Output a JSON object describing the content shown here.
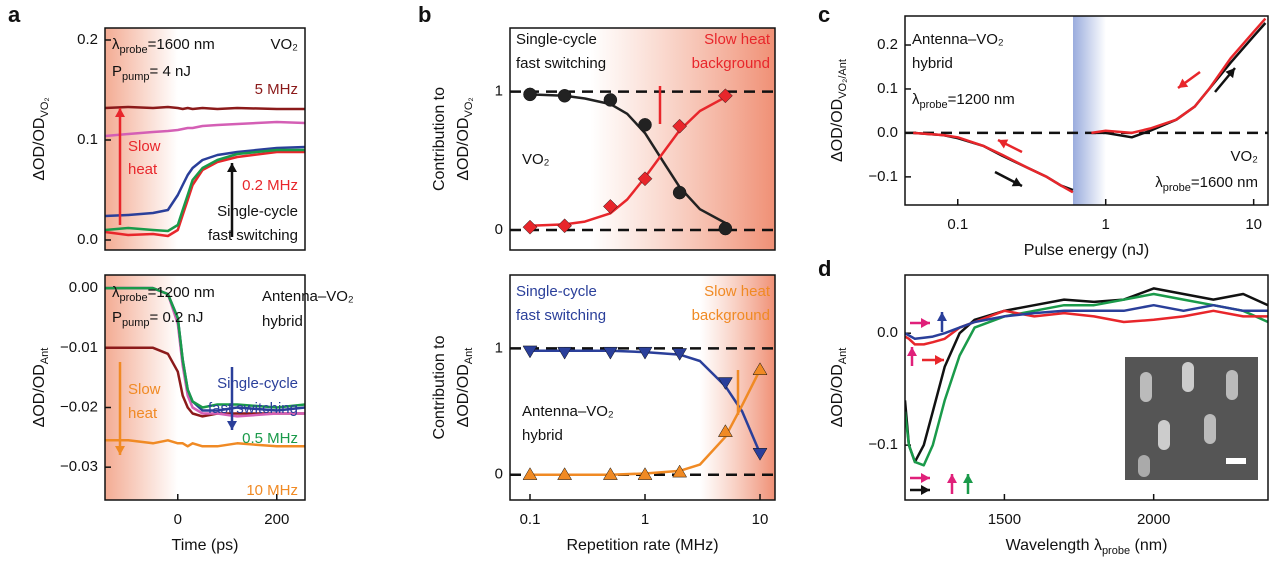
{
  "chart_data": [
    {
      "panel": "a",
      "type": "line",
      "ylabel": [
        [
          "ΔOD/OD",
          "VO₂"
        ]
      ],
      "xlim": [
        -147,
        257
      ],
      "ylim": [
        -0.01,
        0.212
      ],
      "yticks": [
        {
          "value": 0,
          "label": "0.0"
        },
        {
          "value": 0.1,
          "label": "0.1"
        },
        {
          "value": 0.2,
          "label": "0.2"
        }
      ],
      "x": [
        -147,
        -100,
        -50,
        -20,
        0,
        10,
        20,
        30,
        50,
        80,
        120,
        200,
        257
      ],
      "series": [
        {
          "name": "5 MHz",
          "color": "#8b1a1a",
          "values": [
            0.132,
            0.133,
            0.132,
            0.133,
            0.132,
            0.131,
            0.132,
            0.131,
            0.132,
            0.131,
            0.132,
            0.131,
            0.131
          ]
        },
        {
          "color": "#d45fb5",
          "values": [
            0.104,
            0.106,
            0.108,
            0.109,
            0.11,
            0.111,
            0.112,
            0.112,
            0.114,
            0.115,
            0.116,
            0.118,
            0.117
          ]
        },
        {
          "color": "#2a3f9a",
          "values": [
            0.024,
            0.025,
            0.027,
            0.03,
            0.045,
            0.055,
            0.065,
            0.072,
            0.08,
            0.085,
            0.088,
            0.092,
            0.093
          ]
        },
        {
          "name": "0.2 MHz",
          "color": "#e8262b",
          "values": [
            0.008,
            0.005,
            0.006,
            0.004,
            0.01,
            0.025,
            0.04,
            0.055,
            0.07,
            0.078,
            0.083,
            0.088,
            0.088
          ]
        },
        {
          "color": "#1a9a4a",
          "values": [
            0.01,
            0.012,
            0.01,
            0.009,
            0.015,
            0.03,
            0.045,
            0.06,
            0.072,
            0.08,
            0.086,
            0.09,
            0.09
          ]
        }
      ],
      "annotations": [
        [
          "λ",
          "probe",
          "=1600 nm"
        ],
        [
          "P",
          "pump",
          "= 4 nJ"
        ],
        [
          "VO₂"
        ],
        [
          "Slow"
        ],
        [
          "heat"
        ],
        [
          "Single-cycle"
        ],
        [
          "fast switching"
        ]
      ]
    },
    {
      "type": "line",
      "ylabel": [
        [
          "ΔOD/OD",
          "Ant"
        ]
      ],
      "xlabel": [
        "Time (ps)"
      ],
      "xlim": [
        -147,
        257
      ],
      "xticks": [
        0,
        200
      ],
      "ylim": [
        -0.0355,
        0.0022
      ],
      "yticks": [
        {
          "value": 0,
          "label": "0.00"
        },
        {
          "value": -0.01,
          "label": "−0.01"
        },
        {
          "value": -0.02,
          "label": "−0.02"
        },
        {
          "value": -0.03,
          "label": "−0.03"
        }
      ],
      "x": [
        -147,
        -100,
        -50,
        -20,
        0,
        10,
        20,
        30,
        50,
        80,
        120,
        200,
        257
      ],
      "series": [
        {
          "color": "#8b1a1a",
          "values": [
            -0.01,
            -0.01,
            -0.01,
            -0.011,
            -0.014,
            -0.018,
            -0.02,
            -0.021,
            -0.0215,
            -0.021,
            -0.021,
            -0.021,
            -0.021
          ]
        },
        {
          "color": "#d45fb5",
          "values": [
            0,
            0,
            0,
            -0.001,
            -0.006,
            -0.013,
            -0.018,
            -0.02,
            -0.021,
            -0.021,
            -0.0215,
            -0.021,
            -0.021
          ]
        },
        {
          "color": "#2a3f9a",
          "values": [
            0,
            0,
            0,
            -0.001,
            -0.005,
            -0.012,
            -0.017,
            -0.019,
            -0.0205,
            -0.0205,
            -0.02,
            -0.0205,
            -0.02
          ]
        },
        {
          "name": "0.5 MHz",
          "color": "#1a9a4a",
          "values": [
            0,
            0,
            0,
            -0.001,
            -0.005,
            -0.012,
            -0.017,
            -0.019,
            -0.02,
            -0.0195,
            -0.0195,
            -0.02,
            -0.0195
          ]
        },
        {
          "name": "10 MHz",
          "color": "#f08a24",
          "values": [
            -0.0255,
            -0.0255,
            -0.026,
            -0.0255,
            -0.026,
            -0.026,
            -0.0265,
            -0.026,
            -0.0265,
            -0.0265,
            -0.026,
            -0.0265,
            -0.0265
          ]
        }
      ],
      "annotations": [
        [
          "λ",
          "probe",
          "=1200 nm"
        ],
        [
          "P",
          "pump",
          "= 0.2 nJ"
        ],
        [
          "Antenna–VO₂"
        ],
        [
          "hybrid"
        ],
        [
          "Slow"
        ],
        [
          "heat"
        ],
        [
          "Single-cycle"
        ],
        [
          "fast switching"
        ]
      ]
    },
    {
      "panel": "b",
      "type": "line",
      "xscale": "log",
      "ylabel": [
        [
          "Contribution to"
        ],
        [
          "ΔOD/OD",
          "VO₂"
        ]
      ],
      "xlim": [
        0.067,
        13.5
      ],
      "ylim": [
        -0.145,
        1.46
      ],
      "yticks": [
        0,
        1
      ],
      "hlines": [
        0,
        1
      ],
      "series": [
        {
          "color": "#222222",
          "x": [
            0.1,
            0.2,
            0.3,
            0.5,
            0.7,
            1,
            1.5,
            2,
            3,
            5
          ],
          "values": [
            0.98,
            0.97,
            0.95,
            0.91,
            0.84,
            0.7,
            0.47,
            0.31,
            0.15,
            0.05
          ]
        },
        {
          "color": "#e8262b",
          "x": [
            0.1,
            0.2,
            0.3,
            0.5,
            0.7,
            1,
            1.5,
            2,
            3,
            5
          ],
          "values": [
            0.03,
            0.04,
            0.06,
            0.12,
            0.22,
            0.38,
            0.58,
            0.72,
            0.86,
            0.96
          ]
        },
        {
          "color": "#222222",
          "marker": "circle",
          "x": [
            0.1,
            0.2,
            0.5,
            1,
            2,
            5
          ],
          "values": [
            0.98,
            0.97,
            0.94,
            0.76,
            0.27,
            0.01
          ]
        },
        {
          "color": "#e8262b",
          "marker": "diamond",
          "x": [
            0.1,
            0.2,
            0.5,
            1,
            2,
            5
          ],
          "values": [
            0.02,
            0.03,
            0.17,
            0.37,
            0.75,
            0.97
          ]
        }
      ],
      "annotations": [
        [
          "Single-cycle"
        ],
        [
          "fast switching"
        ],
        [
          "Slow heat"
        ],
        [
          "background"
        ],
        [
          "VO₂"
        ]
      ]
    },
    {
      "type": "line",
      "xscale": "log",
      "ylabel": [
        [
          "Contribution to"
        ],
        [
          "ΔOD/OD",
          "Ant"
        ]
      ],
      "xlabel": [
        "Repetition rate (MHz)"
      ],
      "xlim": [
        0.067,
        13.5
      ],
      "xticks": [
        0.1,
        1,
        10
      ],
      "ylim": [
        -0.2,
        1.58
      ],
      "yticks": [
        0,
        1
      ],
      "hlines": [
        0,
        1
      ],
      "series": [
        {
          "color": "#2a3f9a",
          "x": [
            0.1,
            0.5,
            1,
            2,
            3,
            5,
            7,
            10
          ],
          "values": [
            0.98,
            0.98,
            0.97,
            0.95,
            0.9,
            0.7,
            0.5,
            0.17
          ]
        },
        {
          "color": "#f08a24",
          "x": [
            0.1,
            0.5,
            1,
            2,
            3,
            5,
            7,
            10
          ],
          "values": [
            0,
            0,
            0.01,
            0.03,
            0.08,
            0.3,
            0.55,
            0.83
          ]
        },
        {
          "color": "#2a3f9a",
          "marker": "triangle-down",
          "x": [
            0.1,
            0.2,
            0.5,
            1,
            2,
            5,
            10
          ],
          "values": [
            0.98,
            0.97,
            0.97,
            0.97,
            0.96,
            0.73,
            0.17
          ]
        },
        {
          "color": "#f08a24",
          "marker": "triangle-up",
          "x": [
            0.1,
            0.2,
            0.5,
            1,
            2,
            5,
            10
          ],
          "values": [
            0,
            0,
            0,
            0,
            0.02,
            0.34,
            0.83
          ]
        }
      ],
      "annotations": [
        [
          "Single-cycle"
        ],
        [
          "fast switching"
        ],
        [
          "Slow heat"
        ],
        [
          "background"
        ],
        [
          "Antenna–VO₂"
        ],
        [
          "hybrid"
        ]
      ]
    },
    {
      "panel": "c",
      "type": "line",
      "xscale": "log",
      "ylabel": [
        [
          "ΔOD/OD",
          "VO₂/Ant"
        ]
      ],
      "xlabel": [
        "Pulse energy (nJ)"
      ],
      "xlim": [
        0.044,
        12.5
      ],
      "xticks": [
        0.1,
        1,
        10
      ],
      "ylim": [
        -0.164,
        0.266
      ],
      "yticks": [
        {
          "value": -0.1,
          "label": "−0.1"
        },
        {
          "value": 0,
          "label": "0.0"
        },
        {
          "value": 0.1,
          "label": "0.1"
        },
        {
          "value": 0.2,
          "label": "0.2"
        }
      ],
      "hlines": [
        0
      ],
      "x": [
        0.05,
        0.08,
        0.1,
        0.15,
        0.2,
        0.3,
        0.4,
        0.5,
        0.6,
        0.7,
        0.8,
        1,
        1.5,
        2,
        3,
        4,
        5,
        7,
        10,
        12
      ],
      "series": [
        {
          "color": "#111111",
          "values": [
            0,
            -0.005,
            -0.012,
            -0.03,
            -0.052,
            -0.08,
            -0.1,
            -0.12,
            -0.13,
            null,
            0,
            0,
            -0.01,
            0.005,
            0.03,
            0.06,
            0.1,
            0.16,
            0.22,
            0.25
          ]
        },
        {
          "color": "#e8262b",
          "values": [
            0,
            -0.005,
            -0.01,
            -0.03,
            -0.05,
            -0.08,
            -0.1,
            -0.12,
            -0.135,
            null,
            0,
            0.005,
            0,
            0.01,
            0.03,
            0.06,
            0.1,
            0.17,
            0.23,
            0.26
          ]
        }
      ],
      "annotations": [
        [
          "Antenna–VO₂"
        ],
        [
          "hybrid"
        ],
        [
          "λ",
          "probe",
          "=1200 nm"
        ],
        [
          "VO₂"
        ],
        [
          "λ",
          "probe",
          "=1600 nm"
        ]
      ]
    },
    {
      "panel": "d",
      "type": "line",
      "ylabel": [
        [
          "ΔOD/OD",
          "Ant"
        ]
      ],
      "xlabel": [
        "Wavelength λ",
        "probe",
        " (nm)"
      ],
      "xlim": [
        1167,
        2383
      ],
      "xticks": [
        1500,
        2000
      ],
      "ylim": [
        -0.149,
        0.052
      ],
      "yticks": [
        {
          "value": -0.1,
          "label": "−0.1"
        },
        {
          "value": 0,
          "label": "0.0"
        }
      ],
      "x": [
        1167,
        1180,
        1200,
        1230,
        1260,
        1300,
        1350,
        1400,
        1500,
        1600,
        1700,
        1800,
        1900,
        2000,
        2100,
        2200,
        2300,
        2383
      ],
      "series": [
        {
          "color": "#111111",
          "values": [
            -0.06,
            -0.1,
            -0.115,
            -0.1,
            -0.07,
            -0.03,
            0,
            0.012,
            0.02,
            0.025,
            0.03,
            0.028,
            0.03,
            0.04,
            0.035,
            0.03,
            0.035,
            0.025
          ]
        },
        {
          "color": "#1a9a4a",
          "values": [
            -0.07,
            -0.1,
            -0.115,
            -0.118,
            -0.1,
            -0.06,
            -0.02,
            0.005,
            0.015,
            0.02,
            0.025,
            0.025,
            0.03,
            0.035,
            0.03,
            0.025,
            0.02,
            0.01
          ]
        },
        {
          "color": "#e8262b",
          "values": [
            -0.003,
            -0.005,
            -0.01,
            -0.01,
            -0.008,
            -0.005,
            0.005,
            0.01,
            0.02,
            0.015,
            0.018,
            0.015,
            0.01,
            0.012,
            0.015,
            0.02,
            0.015,
            0.015
          ]
        },
        {
          "color": "#2a3f9a",
          "values": [
            0,
            -0.002,
            -0.005,
            -0.004,
            -0.003,
            0,
            0.005,
            0.01,
            0.015,
            0.018,
            0.02,
            0.02,
            0.02,
            0.025,
            0.02,
            0.025,
            0.02,
            0.02
          ]
        }
      ]
    }
  ]
}
